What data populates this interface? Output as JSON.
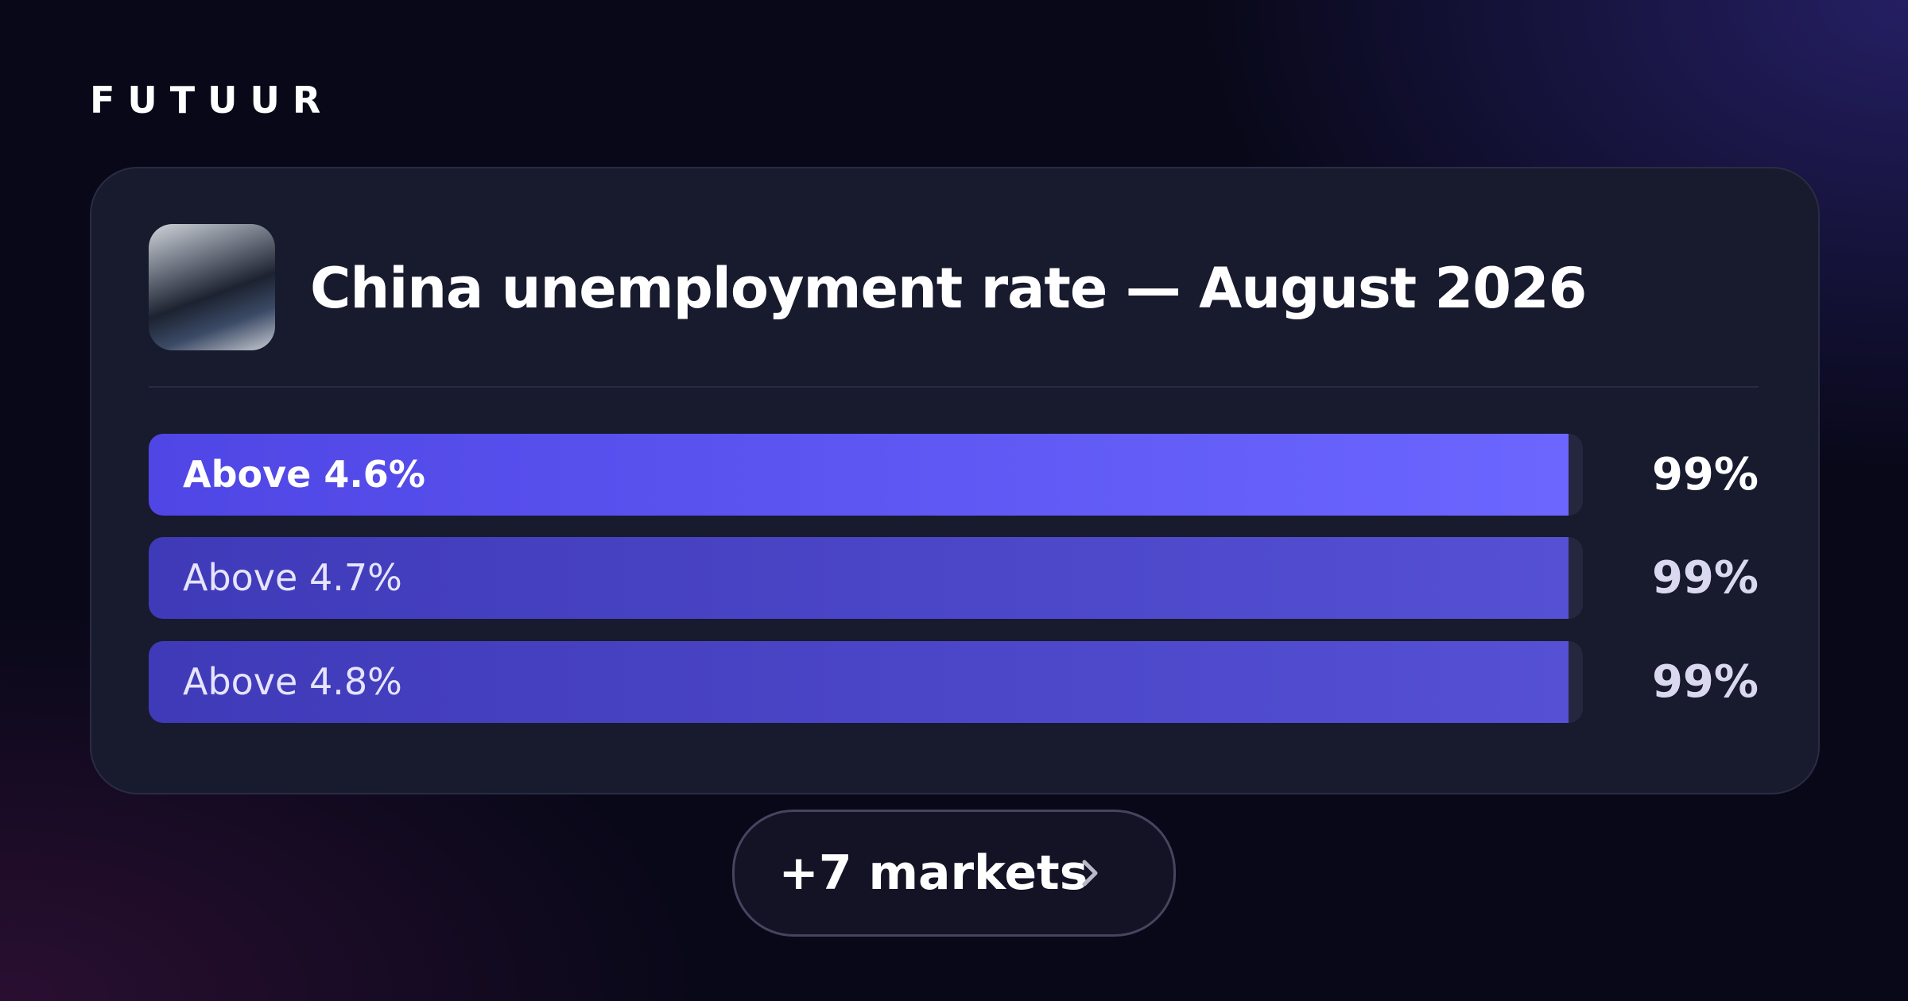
{
  "brand": "FUTUUR",
  "market": {
    "title": "China unemployment rate — August 2026",
    "outcomes": [
      {
        "label": "Above 4.6%",
        "value": 99,
        "value_label": "99%"
      },
      {
        "label": "Above 4.7%",
        "value": 99,
        "value_label": "99%"
      },
      {
        "label": "Above 4.8%",
        "value": 99,
        "value_label": "99%"
      }
    ]
  },
  "more_button": "+7 markets"
}
